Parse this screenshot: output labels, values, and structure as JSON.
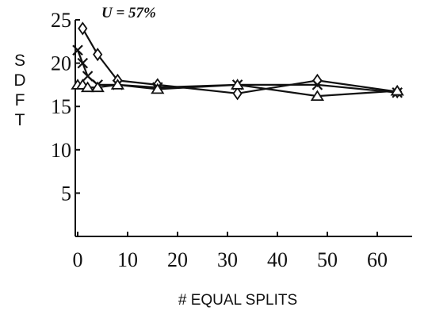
{
  "chart_data": {
    "type": "line",
    "title": "",
    "annotation": "U = 57%",
    "xlabel": "# EQUAL SPLITS",
    "ylabel": "SDFT",
    "ylabel_letters": [
      "S",
      "D",
      "F",
      "T"
    ],
    "xlim": [
      -2,
      66
    ],
    "ylim": [
      0,
      25
    ],
    "xticks": [
      0,
      10,
      20,
      30,
      40,
      50,
      60
    ],
    "yticks": [
      5,
      10,
      15,
      20,
      25
    ],
    "grid": false,
    "series": [
      {
        "marker": "diamond",
        "x": [
          1,
          4,
          8,
          16,
          32,
          48,
          64
        ],
        "y": [
          24,
          21,
          18,
          17.5,
          16.5,
          18,
          16.7
        ]
      },
      {
        "marker": "x",
        "x": [
          0,
          1,
          2,
          4,
          8,
          16,
          32,
          48,
          64
        ],
        "y": [
          21.5,
          20,
          18.5,
          17.5,
          17.5,
          17.2,
          17.5,
          17.5,
          16.6
        ]
      },
      {
        "marker": "triangle",
        "x": [
          0,
          1,
          2,
          4,
          8,
          16,
          32,
          48,
          64
        ],
        "y": [
          17.5,
          17.5,
          17.2,
          17.2,
          17.5,
          17,
          17.5,
          16.2,
          16.8
        ]
      }
    ]
  }
}
